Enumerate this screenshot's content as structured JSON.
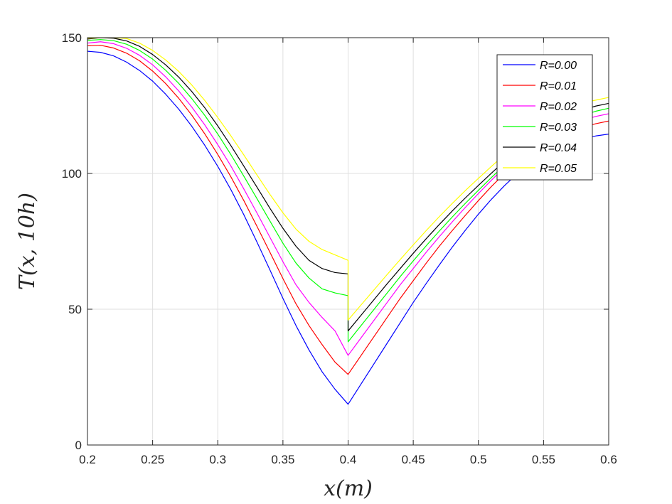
{
  "chart_data": {
    "type": "line",
    "title": "",
    "xlabel": "x(m)",
    "ylabel": "T(x, 10h)",
    "xlim": [
      0.2,
      0.6
    ],
    "ylim": [
      0,
      150
    ],
    "xticks": [
      0.2,
      0.25,
      0.3,
      0.35,
      0.4,
      0.45,
      0.5,
      0.55,
      0.6
    ],
    "xtick_labels": [
      "0.2",
      "0.25",
      "0.3",
      "0.35",
      "0.4",
      "0.45",
      "0.5",
      "0.55",
      "0.6"
    ],
    "yticks": [
      0,
      50,
      100,
      150
    ],
    "ytick_labels": [
      "0",
      "50",
      "100",
      "150"
    ],
    "grid": true,
    "legend_position": "top-right",
    "series": [
      {
        "name": "R=0.00",
        "color": "#0000ff",
        "x": [
          0.2,
          0.21,
          0.22,
          0.23,
          0.24,
          0.25,
          0.26,
          0.27,
          0.28,
          0.29,
          0.3,
          0.31,
          0.32,
          0.33,
          0.34,
          0.35,
          0.36,
          0.37,
          0.38,
          0.39,
          0.4,
          0.4,
          0.41,
          0.42,
          0.43,
          0.44,
          0.45,
          0.46,
          0.47,
          0.48,
          0.49,
          0.5,
          0.51,
          0.52,
          0.53,
          0.54,
          0.55,
          0.56,
          0.57,
          0.58,
          0.59,
          0.6
        ],
        "y": [
          145.0,
          144.6,
          143.3,
          141.0,
          137.9,
          134.0,
          129.2,
          123.7,
          117.4,
          110.4,
          102.6,
          94.1,
          84.8,
          74.8,
          64.5,
          54.0,
          44.0,
          35.0,
          27.0,
          20.5,
          15.0,
          15.0,
          22.5,
          30.0,
          37.5,
          45.0,
          52.5,
          59.5,
          66.3,
          72.9,
          79.1,
          85.0,
          90.5,
          95.5,
          100.0,
          103.8,
          106.9,
          109.3,
          111.2,
          112.7,
          113.8,
          114.5
        ]
      },
      {
        "name": "R=0.01",
        "color": "#ff0000",
        "x": [
          0.2,
          0.21,
          0.22,
          0.23,
          0.24,
          0.25,
          0.26,
          0.27,
          0.28,
          0.29,
          0.3,
          0.31,
          0.32,
          0.33,
          0.34,
          0.35,
          0.36,
          0.37,
          0.38,
          0.39,
          0.4,
          0.4,
          0.41,
          0.42,
          0.43,
          0.44,
          0.45,
          0.46,
          0.47,
          0.48,
          0.49,
          0.5,
          0.51,
          0.52,
          0.53,
          0.54,
          0.55,
          0.56,
          0.57,
          0.58,
          0.59,
          0.6
        ],
        "y": [
          147.0,
          147.2,
          146.2,
          144.3,
          141.5,
          137.7,
          133.1,
          127.7,
          121.5,
          114.6,
          107.0,
          98.8,
          90.0,
          80.6,
          71.0,
          61.3,
          52.0,
          44.0,
          37.0,
          30.5,
          26.0,
          26.0,
          33.0,
          40.0,
          47.0,
          54.0,
          60.5,
          67.0,
          73.2,
          79.0,
          84.6,
          90.0,
          95.2,
          100.0,
          104.3,
          107.9,
          110.8,
          113.2,
          115.2,
          116.9,
          118.3,
          119.3
        ]
      },
      {
        "name": "R=0.02",
        "color": "#ff00ff",
        "x": [
          0.2,
          0.21,
          0.22,
          0.23,
          0.24,
          0.25,
          0.26,
          0.27,
          0.28,
          0.29,
          0.3,
          0.31,
          0.32,
          0.33,
          0.34,
          0.35,
          0.36,
          0.37,
          0.38,
          0.39,
          0.4,
          0.4,
          0.41,
          0.42,
          0.43,
          0.44,
          0.45,
          0.46,
          0.47,
          0.48,
          0.49,
          0.5,
          0.51,
          0.52,
          0.53,
          0.54,
          0.55,
          0.56,
          0.57,
          0.58,
          0.59,
          0.6
        ],
        "y": [
          148.0,
          148.5,
          147.8,
          146.1,
          143.5,
          140.0,
          135.6,
          130.4,
          124.5,
          117.9,
          110.6,
          102.8,
          94.3,
          85.5,
          76.5,
          67.5,
          59.0,
          52.5,
          47.0,
          42.0,
          33.0,
          33.0,
          39.5,
          46.0,
          52.5,
          59.0,
          65.0,
          71.0,
          76.7,
          82.2,
          87.5,
          92.6,
          97.5,
          102.2,
          106.5,
          110.2,
          113.3,
          115.8,
          117.9,
          119.6,
          121.0,
          122.0
        ]
      },
      {
        "name": "R=0.03",
        "color": "#00ff00",
        "x": [
          0.2,
          0.21,
          0.22,
          0.23,
          0.24,
          0.25,
          0.26,
          0.27,
          0.28,
          0.29,
          0.3,
          0.31,
          0.32,
          0.33,
          0.34,
          0.35,
          0.36,
          0.37,
          0.38,
          0.39,
          0.4,
          0.4,
          0.41,
          0.42,
          0.43,
          0.44,
          0.45,
          0.46,
          0.47,
          0.48,
          0.49,
          0.5,
          0.51,
          0.52,
          0.53,
          0.54,
          0.55,
          0.56,
          0.57,
          0.58,
          0.59,
          0.6
        ],
        "y": [
          149.0,
          149.3,
          148.9,
          147.6,
          145.3,
          142.1,
          138.0,
          133.2,
          127.6,
          121.4,
          114.5,
          107.0,
          99.0,
          90.8,
          82.5,
          74.3,
          67.0,
          61.5,
          57.5,
          56.0,
          55.0,
          38.0,
          44.0,
          50.0,
          56.0,
          62.0,
          67.8,
          73.4,
          78.8,
          84.0,
          89.0,
          93.8,
          98.5,
          103.0,
          107.3,
          111.2,
          114.6,
          117.4,
          119.6,
          121.4,
          122.9,
          124.0
        ]
      },
      {
        "name": "R=0.04",
        "color": "#000000",
        "x": [
          0.2,
          0.21,
          0.22,
          0.23,
          0.24,
          0.25,
          0.26,
          0.27,
          0.28,
          0.29,
          0.3,
          0.31,
          0.32,
          0.33,
          0.34,
          0.35,
          0.36,
          0.37,
          0.38,
          0.39,
          0.4,
          0.4,
          0.41,
          0.42,
          0.43,
          0.44,
          0.45,
          0.46,
          0.47,
          0.48,
          0.49,
          0.5,
          0.51,
          0.52,
          0.53,
          0.54,
          0.55,
          0.56,
          0.57,
          0.58,
          0.59,
          0.6
        ],
        "y": [
          149.5,
          150.0,
          149.8,
          148.8,
          146.8,
          143.8,
          140.0,
          135.5,
          130.2,
          124.2,
          117.5,
          110.3,
          102.7,
          95.0,
          87.2,
          79.8,
          73.2,
          68.0,
          65.0,
          63.5,
          63.0,
          42.0,
          47.8,
          53.6,
          59.4,
          65.0,
          70.6,
          76.0,
          81.2,
          86.2,
          91.0,
          95.6,
          100.1,
          104.5,
          108.6,
          112.4,
          115.8,
          118.8,
          121.3,
          123.3,
          124.8,
          125.8
        ]
      },
      {
        "name": "R=0.05",
        "color": "#ffff00",
        "x": [
          0.2,
          0.21,
          0.22,
          0.23,
          0.24,
          0.25,
          0.26,
          0.27,
          0.28,
          0.29,
          0.3,
          0.31,
          0.32,
          0.33,
          0.34,
          0.35,
          0.36,
          0.37,
          0.38,
          0.39,
          0.4,
          0.4,
          0.41,
          0.42,
          0.43,
          0.44,
          0.45,
          0.46,
          0.47,
          0.48,
          0.49,
          0.5,
          0.51,
          0.52,
          0.53,
          0.54,
          0.55,
          0.56,
          0.57,
          0.58,
          0.59,
          0.6
        ],
        "y": [
          149.8,
          150.0,
          150.0,
          149.7,
          148.0,
          145.3,
          141.8,
          137.6,
          132.6,
          126.9,
          120.6,
          113.9,
          106.8,
          99.5,
          92.3,
          85.5,
          79.5,
          75.0,
          72.0,
          70.0,
          68.0,
          46.0,
          51.6,
          57.2,
          62.8,
          68.3,
          73.7,
          79.0,
          84.1,
          89.0,
          93.7,
          98.2,
          102.6,
          106.9,
          111.0,
          114.8,
          118.3,
          121.4,
          124.0,
          126.0,
          127.0,
          128.0
        ]
      }
    ]
  }
}
